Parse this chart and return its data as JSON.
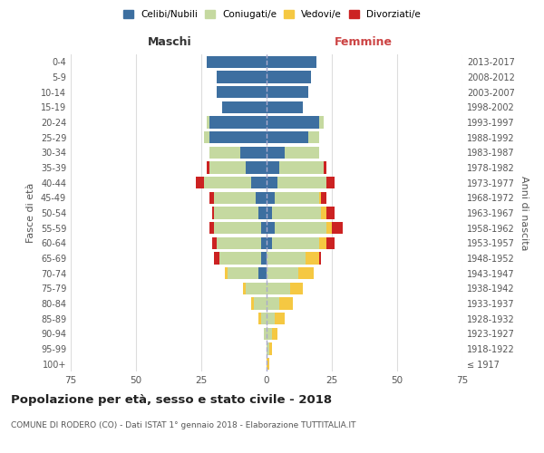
{
  "age_groups": [
    "100+",
    "95-99",
    "90-94",
    "85-89",
    "80-84",
    "75-79",
    "70-74",
    "65-69",
    "60-64",
    "55-59",
    "50-54",
    "45-49",
    "40-44",
    "35-39",
    "30-34",
    "25-29",
    "20-24",
    "15-19",
    "10-14",
    "5-9",
    "0-4"
  ],
  "birth_years": [
    "≤ 1917",
    "1918-1922",
    "1923-1927",
    "1928-1932",
    "1933-1937",
    "1938-1942",
    "1943-1947",
    "1948-1952",
    "1953-1957",
    "1958-1962",
    "1963-1967",
    "1968-1972",
    "1973-1977",
    "1978-1982",
    "1983-1987",
    "1988-1992",
    "1993-1997",
    "1998-2002",
    "2003-2007",
    "2008-2012",
    "2013-2017"
  ],
  "male": {
    "celibi": [
      0,
      0,
      0,
      0,
      0,
      0,
      3,
      2,
      2,
      2,
      3,
      4,
      6,
      8,
      10,
      22,
      22,
      17,
      19,
      19,
      23
    ],
    "coniugati": [
      0,
      0,
      1,
      2,
      5,
      8,
      12,
      16,
      17,
      18,
      17,
      16,
      18,
      14,
      12,
      2,
      1,
      0,
      0,
      0,
      0
    ],
    "vedovi": [
      0,
      0,
      0,
      1,
      1,
      1,
      1,
      0,
      0,
      0,
      0,
      0,
      0,
      0,
      0,
      0,
      0,
      0,
      0,
      0,
      0
    ],
    "divorziati": [
      0,
      0,
      0,
      0,
      0,
      0,
      0,
      2,
      2,
      2,
      1,
      2,
      3,
      1,
      0,
      0,
      0,
      0,
      0,
      0,
      0
    ]
  },
  "female": {
    "nubili": [
      0,
      0,
      0,
      0,
      0,
      0,
      0,
      0,
      2,
      3,
      2,
      3,
      4,
      5,
      7,
      16,
      20,
      14,
      16,
      17,
      19
    ],
    "coniugate": [
      0,
      1,
      2,
      3,
      5,
      9,
      12,
      15,
      18,
      20,
      19,
      17,
      19,
      17,
      13,
      4,
      2,
      0,
      0,
      0,
      0
    ],
    "vedove": [
      1,
      1,
      2,
      4,
      5,
      5,
      6,
      5,
      3,
      2,
      2,
      1,
      0,
      0,
      0,
      0,
      0,
      0,
      0,
      0,
      0
    ],
    "divorziate": [
      0,
      0,
      0,
      0,
      0,
      0,
      0,
      1,
      3,
      4,
      3,
      2,
      3,
      1,
      0,
      0,
      0,
      0,
      0,
      0,
      0
    ]
  },
  "colors": {
    "celibi": "#3d6fa0",
    "coniugati": "#c5d9a0",
    "vedovi": "#f5c842",
    "divorziati": "#cc2222"
  },
  "xlim": 75,
  "title": "Popolazione per età, sesso e stato civile - 2018",
  "subtitle": "COMUNE DI RODERO (CO) - Dati ISTAT 1° gennaio 2018 - Elaborazione TUTTITALIA.IT",
  "ylabel_left": "Fasce di età",
  "ylabel_right": "Anni di nascita",
  "xlabel_left": "Maschi",
  "xlabel_right": "Femmine",
  "legend_labels": [
    "Celibi/Nubili",
    "Coniugati/e",
    "Vedovi/e",
    "Divorziati/e"
  ],
  "background_color": "#ffffff",
  "grid_color": "#dddddd"
}
